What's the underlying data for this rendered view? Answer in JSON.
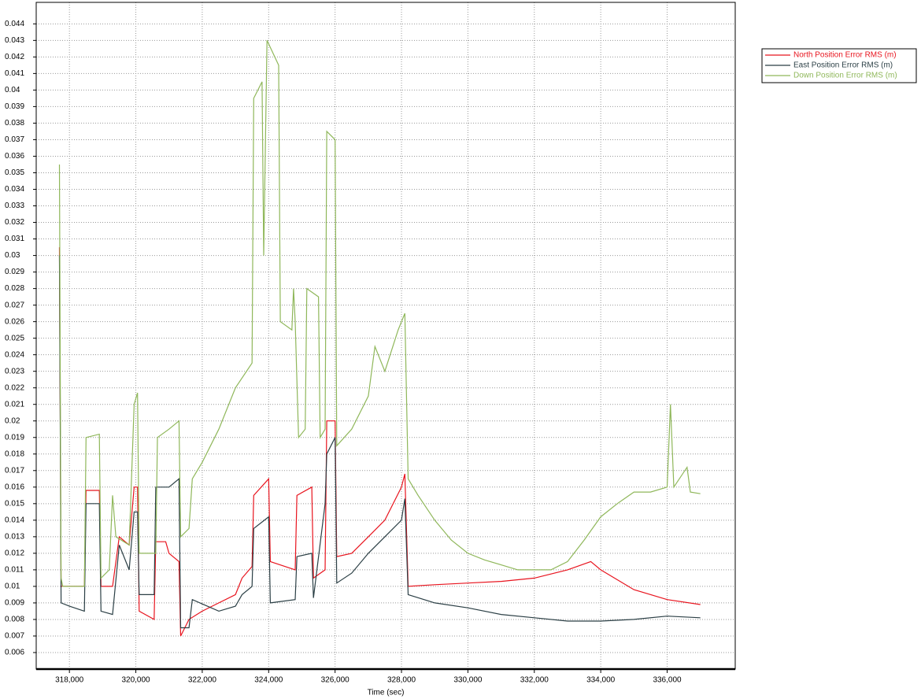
{
  "chart_data": {
    "type": "line",
    "x_label": "Time (sec)",
    "xlim": [
      317000,
      338050
    ],
    "ylim": [
      0.005,
      0.0453
    ],
    "xticks": [
      {
        "value": 318000,
        "label": "318,000"
      },
      {
        "value": 320000,
        "label": "320,000"
      },
      {
        "value": 322000,
        "label": "322,000"
      },
      {
        "value": 324000,
        "label": "324,000"
      },
      {
        "value": 326000,
        "label": "326,000"
      },
      {
        "value": 328000,
        "label": "328,000"
      },
      {
        "value": 330000,
        "label": "330,000"
      },
      {
        "value": 332000,
        "label": "332,000"
      },
      {
        "value": 334000,
        "label": "334,000"
      },
      {
        "value": 336000,
        "label": "336,000"
      }
    ],
    "yticks": [
      0.006,
      0.007,
      0.008,
      0.009,
      0.01,
      0.011,
      0.012,
      0.013,
      0.014,
      0.015,
      0.016,
      0.017,
      0.018,
      0.019,
      0.02,
      0.021,
      0.022,
      0.023,
      0.024,
      0.025,
      0.026,
      0.027,
      0.028,
      0.029,
      0.03,
      0.031,
      0.032,
      0.033,
      0.034,
      0.035,
      0.036,
      0.037,
      0.038,
      0.039,
      0.04,
      0.041,
      0.042,
      0.043,
      0.044
    ],
    "grid": true,
    "legend": "top-right",
    "series": [
      {
        "name": "North Position Error RMS (m)",
        "color": "#e8141e",
        "x": [
          317700,
          317750,
          318000,
          318450,
          318500,
          318900,
          318950,
          319300,
          319500,
          319800,
          319950,
          320050,
          320100,
          320550,
          320600,
          320900,
          321000,
          321300,
          321350,
          321600,
          322000,
          322500,
          323000,
          323200,
          323500,
          323550,
          324000,
          324050,
          324800,
          324850,
          325300,
          325350,
          325700,
          325750,
          326000,
          326050,
          326500,
          327000,
          327500,
          328000,
          328100,
          328200,
          329000,
          330000,
          331000,
          332000,
          333000,
          333700,
          334000,
          335000,
          336000,
          337000
        ],
        "values": [
          0.0305,
          0.01,
          0.01,
          0.01,
          0.0158,
          0.0158,
          0.01,
          0.01,
          0.013,
          0.0125,
          0.016,
          0.016,
          0.0085,
          0.008,
          0.0127,
          0.0127,
          0.012,
          0.0115,
          0.007,
          0.008,
          0.0085,
          0.009,
          0.0095,
          0.0105,
          0.0112,
          0.0155,
          0.0165,
          0.0115,
          0.011,
          0.0155,
          0.016,
          0.0105,
          0.011,
          0.02,
          0.02,
          0.0118,
          0.012,
          0.013,
          0.014,
          0.016,
          0.0168,
          0.01,
          0.0101,
          0.0102,
          0.0103,
          0.0105,
          0.011,
          0.0115,
          0.011,
          0.0098,
          0.0092,
          0.0089
        ]
      },
      {
        "name": "East Position Error RMS (m)",
        "color": "#2b3f45",
        "x": [
          317700,
          317750,
          318000,
          318450,
          318500,
          318900,
          318950,
          319300,
          319500,
          319800,
          319950,
          320050,
          320100,
          320550,
          320600,
          321000,
          321300,
          321350,
          321600,
          321700,
          322500,
          323000,
          323200,
          323500,
          323550,
          324000,
          324050,
          324800,
          324850,
          325300,
          325350,
          325700,
          325750,
          326000,
          326050,
          326500,
          327000,
          327500,
          328000,
          328100,
          328200,
          329000,
          330000,
          331000,
          332000,
          333000,
          334000,
          335000,
          336000,
          337000
        ],
        "values": [
          0.03,
          0.009,
          0.0088,
          0.0085,
          0.015,
          0.015,
          0.0085,
          0.0083,
          0.0125,
          0.011,
          0.0145,
          0.0145,
          0.0095,
          0.0095,
          0.016,
          0.016,
          0.0165,
          0.0075,
          0.0075,
          0.0092,
          0.0085,
          0.0088,
          0.0095,
          0.01,
          0.0135,
          0.0142,
          0.009,
          0.0092,
          0.0118,
          0.012,
          0.0093,
          0.015,
          0.018,
          0.019,
          0.0102,
          0.0108,
          0.012,
          0.013,
          0.014,
          0.0153,
          0.0095,
          0.009,
          0.0087,
          0.0083,
          0.0081,
          0.0079,
          0.0079,
          0.008,
          0.0082,
          0.0081
        ]
      },
      {
        "name": "Down Position Error RMS (m)",
        "color": "#8fb75a",
        "x": [
          317700,
          317750,
          317800,
          318200,
          318450,
          318500,
          318900,
          318950,
          319200,
          319300,
          319400,
          319800,
          319950,
          320050,
          320100,
          320600,
          320650,
          321000,
          321300,
          321350,
          321600,
          321700,
          322000,
          322500,
          323000,
          323500,
          323550,
          323800,
          323850,
          323950,
          324300,
          324350,
          324700,
          324750,
          324800,
          324900,
          325100,
          325150,
          325500,
          325550,
          325700,
          325750,
          326000,
          326050,
          326500,
          327000,
          327200,
          327500,
          327900,
          328100,
          328200,
          328500,
          329000,
          329500,
          330000,
          330500,
          331000,
          331500,
          332000,
          332500,
          333000,
          333500,
          334000,
          334500,
          335000,
          335500,
          336000,
          336100,
          336200,
          336600,
          336700,
          337000
        ],
        "values": [
          0.0355,
          0.0105,
          0.01,
          0.01,
          0.01,
          0.019,
          0.0192,
          0.0105,
          0.011,
          0.0155,
          0.013,
          0.0125,
          0.021,
          0.0217,
          0.012,
          0.012,
          0.019,
          0.0195,
          0.02,
          0.013,
          0.0135,
          0.0165,
          0.0175,
          0.0195,
          0.022,
          0.0235,
          0.0395,
          0.0405,
          0.03,
          0.043,
          0.0415,
          0.026,
          0.0255,
          0.028,
          0.026,
          0.019,
          0.0195,
          0.028,
          0.0275,
          0.019,
          0.0195,
          0.0375,
          0.037,
          0.0185,
          0.0195,
          0.0215,
          0.0245,
          0.023,
          0.0255,
          0.0265,
          0.0165,
          0.0155,
          0.014,
          0.0128,
          0.012,
          0.0116,
          0.0113,
          0.011,
          0.011,
          0.011,
          0.0115,
          0.0128,
          0.0142,
          0.015,
          0.0157,
          0.0157,
          0.016,
          0.021,
          0.016,
          0.0172,
          0.0157,
          0.0156
        ]
      }
    ]
  }
}
